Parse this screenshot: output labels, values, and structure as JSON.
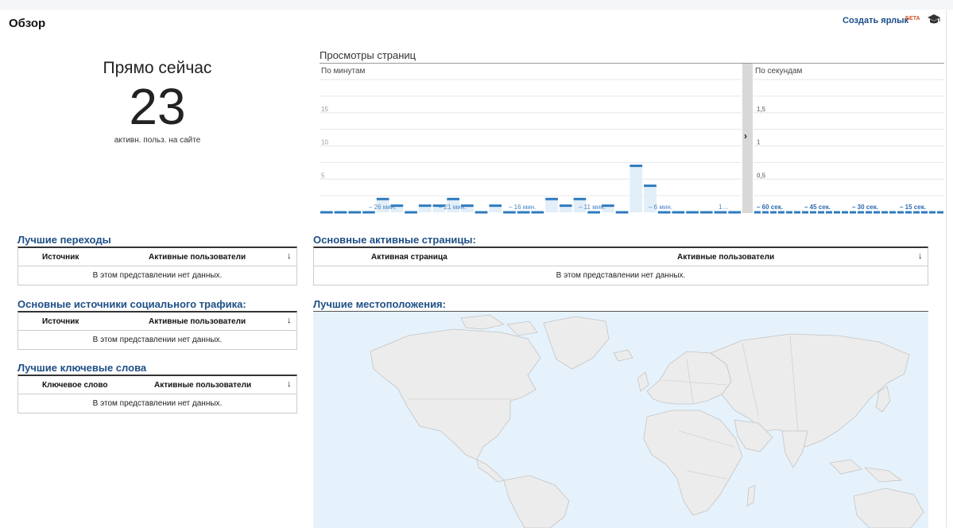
{
  "header": {
    "title": "Обзор",
    "shortcut_label": "Создать ярлык",
    "beta_label": "БЕТА",
    "cap_icon": "graduation-cap-icon"
  },
  "right_now": {
    "title": "Прямо сейчас",
    "value": "23",
    "subtitle": "активн. польз. на сайте"
  },
  "pageviews": {
    "title": "Просмотры страниц",
    "expand_icon": "chevron-right-icon",
    "expand_glyph": "›"
  },
  "chart_data": [
    {
      "type": "bar",
      "title": "По минутам",
      "ylim": [
        0,
        20
      ],
      "yticks": [
        "5",
        "10",
        "15"
      ],
      "x_tick_labels": [
        "– 26 мин.",
        "– 21 мин.",
        "– 16 мин.",
        "– 11 мин.",
        "– 6 мин.",
        "1…"
      ],
      "values": [
        0,
        0,
        0,
        0,
        2,
        1,
        0,
        1,
        1,
        2,
        1,
        0,
        1,
        0,
        0,
        0,
        2,
        1,
        2,
        0,
        1,
        0,
        7,
        4,
        0,
        0,
        0,
        0,
        0,
        0
      ],
      "color": "#2e7bbf"
    },
    {
      "type": "bar",
      "title": "По секундам",
      "ylim": [
        0,
        2
      ],
      "yticks": [
        "0,5",
        "1",
        "1,5"
      ],
      "x_tick_labels": [
        "– 60 сек.",
        "– 45 сек.",
        "– 30 сек.",
        "– 15 сек."
      ],
      "values": [
        0,
        0,
        0,
        0,
        0,
        0,
        0,
        0,
        0,
        0,
        0,
        0,
        0,
        0,
        0,
        0,
        0,
        0,
        0,
        0,
        0,
        0,
        0,
        0
      ],
      "color": "#2e7bbf"
    }
  ],
  "sections": {
    "referrals": {
      "title": "Лучшие переходы",
      "col1": "Источник",
      "col2": "Активные пользователи",
      "sort_icon": "arrow-down-icon",
      "sort_glyph": "↓",
      "empty": "В этом представлении нет данных."
    },
    "social": {
      "title": "Основные источники социального трафика:",
      "col1": "Источник",
      "col2": "Активные пользователи",
      "sort_icon": "arrow-down-icon",
      "sort_glyph": "↓",
      "empty": "В этом представлении нет данных."
    },
    "keywords": {
      "title": "Лучшие ключевые слова",
      "col1": "Ключевое слово",
      "col2": "Активные пользователи",
      "sort_icon": "arrow-down-icon",
      "sort_glyph": "↓",
      "empty": "В этом представлении нет данных."
    },
    "pages": {
      "title": "Основные активные страницы:",
      "col1": "Активная страница",
      "col2": "Активные пользователи",
      "sort_icon": "arrow-down-icon",
      "sort_glyph": "↓",
      "empty": "В этом представлении нет данных."
    },
    "locations": {
      "title": "Лучшие местоположения:",
      "map": "world-map"
    }
  }
}
